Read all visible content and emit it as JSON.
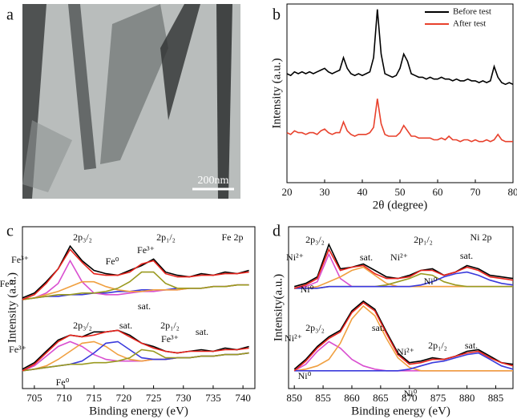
{
  "chart_data": [
    {
      "type": "image",
      "label": "a",
      "scale_bar": "200nm"
    },
    {
      "type": "line",
      "label": "b",
      "xlabel": "2θ (degree)",
      "ylabel": "Intensity (a.u.)",
      "xlim": [
        20,
        80
      ],
      "xticks": [
        20,
        30,
        40,
        50,
        60,
        70,
        80
      ],
      "ylim": [
        0,
        10
      ],
      "legend": "upper right",
      "grid": false,
      "x": [
        20,
        21,
        22,
        23,
        24,
        25,
        26,
        27,
        28,
        29,
        30,
        31,
        32,
        33,
        34,
        35,
        36,
        37,
        38,
        39,
        40,
        41,
        42,
        43,
        44,
        45,
        46,
        47,
        48,
        49,
        50,
        51,
        52,
        53,
        54,
        55,
        56,
        57,
        58,
        59,
        60,
        61,
        62,
        63,
        64,
        65,
        66,
        67,
        68,
        69,
        70,
        71,
        72,
        73,
        74,
        75,
        76,
        77,
        78,
        79,
        80
      ],
      "series": [
        {
          "name": "Before test",
          "color": "#000000",
          "values": [
            6.1,
            6.0,
            6.2,
            6.1,
            6.2,
            6.1,
            6.2,
            6.1,
            6.2,
            6.3,
            6.4,
            6.2,
            6.1,
            6.2,
            6.3,
            7.0,
            6.4,
            6.1,
            6.0,
            6.1,
            6.0,
            6.1,
            6.2,
            7.0,
            9.7,
            7.2,
            6.1,
            6.0,
            5.9,
            6.0,
            6.4,
            7.2,
            6.8,
            6.1,
            6.0,
            5.9,
            5.9,
            5.8,
            5.9,
            5.8,
            5.8,
            5.9,
            5.8,
            5.8,
            5.7,
            5.8,
            5.7,
            5.7,
            5.8,
            5.7,
            5.7,
            5.6,
            5.7,
            5.6,
            5.7,
            6.5,
            5.9,
            5.6,
            5.5,
            5.6,
            5.5
          ]
        },
        {
          "name": "After test",
          "color": "#e8412c",
          "values": [
            2.8,
            2.7,
            2.9,
            2.8,
            2.8,
            2.7,
            2.8,
            2.8,
            2.7,
            2.9,
            3.0,
            2.8,
            2.7,
            2.8,
            2.8,
            3.4,
            2.9,
            2.7,
            2.6,
            2.7,
            2.7,
            2.7,
            2.8,
            3.1,
            4.7,
            3.3,
            2.7,
            2.6,
            2.6,
            2.6,
            2.8,
            3.2,
            2.9,
            2.6,
            2.6,
            2.5,
            2.5,
            2.5,
            2.5,
            2.4,
            2.4,
            2.5,
            2.4,
            2.6,
            2.4,
            2.4,
            2.3,
            2.4,
            2.4,
            2.3,
            2.4,
            2.3,
            2.3,
            2.4,
            2.3,
            2.4,
            2.7,
            2.4,
            2.3,
            2.3,
            2.3
          ]
        }
      ]
    },
    {
      "type": "line",
      "label": "c",
      "xlabel": "Binding energy (eV)",
      "ylabel": "Intensity (a.u.)",
      "xlim": [
        703,
        742
      ],
      "xticks": [
        705,
        710,
        715,
        720,
        725,
        730,
        735,
        740
      ],
      "ylim": [
        0,
        10
      ],
      "grid": false,
      "annotations": [
        "Fe 2p",
        "2p₃/₂",
        "2p₁/₂",
        "Fe³⁺",
        "Fe⁰",
        "Fe⁰",
        "Fe³⁺",
        "sat.",
        "2p₃/₂",
        "sat.",
        "2p₁/₂",
        "Fe³⁺",
        "sat.",
        "Fe³⁺",
        "Fe⁰"
      ],
      "x": [
        703,
        705,
        707,
        709,
        711,
        713,
        715,
        717,
        719,
        721,
        723,
        725,
        727,
        729,
        731,
        733,
        735,
        737,
        739,
        741
      ],
      "series": [
        {
          "color": "#3a3adc",
          "values": [
            5.5,
            5.6,
            5.7,
            5.7,
            5.8,
            5.8,
            5.9,
            5.9,
            6.0,
            6.0,
            6.1,
            6.1,
            6.1,
            6.2,
            6.2,
            6.2,
            6.3,
            6.3,
            6.4,
            6.4
          ]
        },
        {
          "color": "#d94fd0",
          "values": [
            5.5,
            5.6,
            5.9,
            6.5,
            7.9,
            6.6,
            5.9,
            5.8,
            5.8,
            5.9,
            6.0,
            6.0,
            6.1,
            6.1,
            6.2,
            6.2,
            6.3,
            6.3,
            6.4,
            6.4
          ]
        },
        {
          "color": "#f0a040",
          "values": [
            5.5,
            5.6,
            5.8,
            6.0,
            6.3,
            6.6,
            6.6,
            6.3,
            6.1,
            6.0,
            6.0,
            6.1,
            6.1,
            6.1,
            6.2,
            6.2,
            6.3,
            6.3,
            6.4,
            6.4
          ]
        },
        {
          "color": "#9a9a20",
          "values": [
            5.5,
            5.6,
            5.7,
            5.8,
            5.8,
            5.9,
            5.9,
            6.0,
            6.2,
            6.6,
            7.2,
            7.2,
            6.5,
            6.2,
            6.2,
            6.2,
            6.3,
            6.3,
            6.4,
            6.4
          ]
        },
        {
          "color": "#000000",
          "values": [
            5.6,
            5.9,
            6.6,
            7.4,
            8.8,
            7.9,
            7.3,
            7.1,
            7.0,
            7.3,
            7.6,
            8.0,
            7.2,
            7.0,
            6.9,
            7.1,
            7.0,
            7.2,
            7.1,
            7.3
          ]
        },
        {
          "color": "#e8231c",
          "values": [
            5.5,
            5.8,
            6.5,
            7.4,
            8.6,
            7.8,
            7.1,
            7.0,
            7.0,
            7.2,
            7.7,
            7.9,
            7.1,
            6.9,
            6.9,
            7.0,
            7.0,
            7.1,
            7.1,
            7.2
          ]
        },
        {
          "color": "#d94fd0",
          "values": [
            1.1,
            1.4,
            2.0,
            2.6,
            2.9,
            2.6,
            2.1,
            1.8,
            1.7,
            1.7,
            1.7,
            1.8,
            1.8,
            1.9,
            1.9,
            2.0,
            2.0,
            2.1,
            2.1,
            2.2
          ]
        },
        {
          "color": "#f0a040",
          "values": [
            1.1,
            1.2,
            1.4,
            1.8,
            2.3,
            2.8,
            2.9,
            2.6,
            2.1,
            1.8,
            1.7,
            1.8,
            1.8,
            1.9,
            1.9,
            2.0,
            2.0,
            2.1,
            2.1,
            2.2
          ]
        },
        {
          "color": "#3a3adc",
          "values": [
            1.1,
            1.2,
            1.3,
            1.4,
            1.5,
            1.7,
            2.2,
            2.8,
            2.9,
            2.4,
            1.9,
            1.8,
            1.8,
            1.9,
            1.9,
            2.0,
            2.0,
            2.1,
            2.1,
            2.2
          ]
        },
        {
          "color": "#9a9a20",
          "values": [
            1.1,
            1.2,
            1.3,
            1.4,
            1.5,
            1.5,
            1.6,
            1.6,
            1.7,
            1.9,
            2.4,
            2.3,
            1.9,
            1.9,
            1.9,
            2.0,
            2.0,
            2.1,
            2.1,
            2.2
          ]
        },
        {
          "color": "#000000",
          "values": [
            1.2,
            1.6,
            2.3,
            3.0,
            3.3,
            3.2,
            3.5,
            3.5,
            3.6,
            3.3,
            2.8,
            2.6,
            2.3,
            2.2,
            2.3,
            2.4,
            2.3,
            2.5,
            2.4,
            2.6
          ]
        },
        {
          "color": "#e8231c",
          "values": [
            1.1,
            1.5,
            2.2,
            2.9,
            3.3,
            3.2,
            3.3,
            3.5,
            3.6,
            3.2,
            2.8,
            2.5,
            2.3,
            2.2,
            2.3,
            2.3,
            2.3,
            2.4,
            2.4,
            2.5
          ]
        }
      ]
    },
    {
      "type": "line",
      "label": "d",
      "xlabel": "Binding energy (eV)",
      "ylabel": "Intensity(a.u.)",
      "xlim": [
        849,
        888
      ],
      "xticks": [
        850,
        855,
        860,
        865,
        870,
        875,
        880,
        885
      ],
      "ylim": [
        0,
        10
      ],
      "grid": false,
      "annotations": [
        "Ni 2p",
        "2p₃/₂",
        "sat.",
        "2p₁/₂",
        "sat.",
        "Ni²⁺",
        "Ni²⁺",
        "Ni⁰",
        "Ni⁰",
        "2p₃/₂",
        "sat.",
        "Ni²⁺",
        "Ni²⁺",
        "2p₁/₂",
        "sat.",
        "Ni⁰",
        "Ni⁰"
      ],
      "x": [
        850,
        852,
        854,
        856,
        858,
        860,
        862,
        864,
        866,
        868,
        870,
        872,
        874,
        876,
        878,
        880,
        882,
        884,
        886,
        888
      ],
      "series": [
        {
          "color": "#d94fd0",
          "values": [
            6.2,
            6.3,
            6.6,
            8.3,
            6.8,
            6.3,
            6.3,
            6.3,
            6.3,
            6.3,
            6.3,
            6.3,
            6.3,
            6.3,
            6.3,
            6.3,
            6.3,
            6.3,
            6.3,
            6.3
          ]
        },
        {
          "color": "#f0a040",
          "values": [
            6.2,
            6.2,
            6.3,
            6.6,
            6.9,
            7.3,
            7.5,
            7.0,
            6.5,
            6.3,
            6.3,
            6.3,
            6.3,
            6.3,
            6.3,
            6.3,
            6.3,
            6.3,
            6.3,
            6.3
          ]
        },
        {
          "color": "#9a9a20",
          "values": [
            6.2,
            6.2,
            6.2,
            6.3,
            6.3,
            6.3,
            6.3,
            6.3,
            6.4,
            6.6,
            6.8,
            7.1,
            7.0,
            6.6,
            6.4,
            6.3,
            6.3,
            6.3,
            6.3,
            6.3
          ]
        },
        {
          "color": "#3a3adc",
          "values": [
            6.2,
            6.2,
            6.2,
            6.3,
            6.3,
            6.3,
            6.3,
            6.3,
            6.3,
            6.3,
            6.3,
            6.4,
            6.6,
            6.9,
            7.1,
            7.2,
            7.0,
            6.7,
            6.5,
            6.4
          ]
        },
        {
          "color": "#000000",
          "values": [
            6.3,
            6.5,
            6.9,
            8.9,
            7.4,
            7.5,
            7.7,
            7.3,
            6.9,
            6.8,
            7.0,
            7.3,
            7.4,
            7.0,
            7.2,
            7.6,
            7.4,
            7.0,
            6.9,
            6.8
          ]
        },
        {
          "color": "#e8231c",
          "values": [
            6.2,
            6.4,
            6.8,
            8.6,
            7.3,
            7.5,
            7.6,
            7.1,
            6.8,
            6.8,
            6.9,
            7.3,
            7.3,
            7.0,
            7.2,
            7.5,
            7.3,
            6.9,
            6.8,
            6.7
          ]
        },
        {
          "color": "#d94fd0",
          "values": [
            1.1,
            1.5,
            2.3,
            2.9,
            2.5,
            1.8,
            1.4,
            1.2,
            1.1,
            1.1,
            1.1,
            1.1,
            1.1,
            1.1,
            1.1,
            1.1,
            1.1,
            1.1,
            1.1,
            1.1
          ]
        },
        {
          "color": "#f0a040",
          "values": [
            1.1,
            1.2,
            1.4,
            1.8,
            2.8,
            4.3,
            5.1,
            4.5,
            3.1,
            1.9,
            1.3,
            1.1,
            1.1,
            1.1,
            1.1,
            1.1,
            1.1,
            1.1,
            1.1,
            1.1
          ]
        },
        {
          "color": "#3a3adc",
          "values": [
            1.1,
            1.1,
            1.1,
            1.1,
            1.1,
            1.1,
            1.1,
            1.1,
            1.1,
            1.1,
            1.2,
            1.4,
            1.6,
            1.7,
            1.9,
            2.1,
            2.2,
            1.8,
            1.4,
            1.2
          ]
        },
        {
          "color": "#000000",
          "values": [
            1.2,
            1.8,
            2.6,
            3.2,
            3.6,
            4.8,
            5.4,
            4.9,
            3.5,
            2.2,
            1.6,
            1.7,
            1.9,
            1.8,
            2.0,
            2.3,
            2.4,
            2.0,
            1.6,
            1.5
          ]
        },
        {
          "color": "#e8231c",
          "values": [
            1.1,
            1.7,
            2.5,
            3.1,
            3.5,
            4.7,
            5.3,
            4.8,
            3.4,
            2.1,
            1.5,
            1.6,
            1.8,
            1.8,
            2.0,
            2.2,
            2.3,
            1.9,
            1.6,
            1.4
          ]
        }
      ]
    }
  ]
}
